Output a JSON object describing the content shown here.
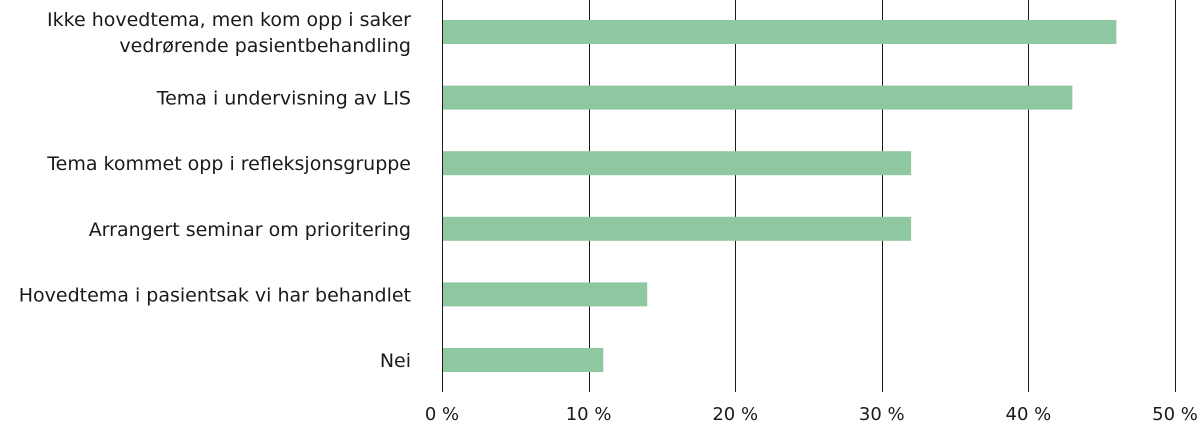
{
  "chart_data": {
    "type": "bar",
    "orientation": "horizontal",
    "categories": [
      [
        "Ikke hovedtema, men kom opp i saker",
        "vedrørende pasientbehandling"
      ],
      [
        "Tema i undervisning av LIS"
      ],
      [
        "Tema kommet opp  i refleksjonsgruppe"
      ],
      [
        "Arrangert seminar om prioritering"
      ],
      [
        "Hovedtema i pasientsak vi har behandlet"
      ],
      [
        "Nei"
      ]
    ],
    "values": [
      46,
      43,
      32,
      32,
      14,
      11
    ],
    "xlim": [
      0,
      50
    ],
    "xticks": [
      0,
      10,
      20,
      30,
      40,
      50
    ],
    "xtick_labels": [
      "0 %",
      "10 %",
      "20 %",
      "30 %",
      "40 %",
      "50 %"
    ],
    "grid": "vertical",
    "bar_color": "#8fc8a0",
    "title": "",
    "xlabel": "",
    "ylabel": ""
  }
}
